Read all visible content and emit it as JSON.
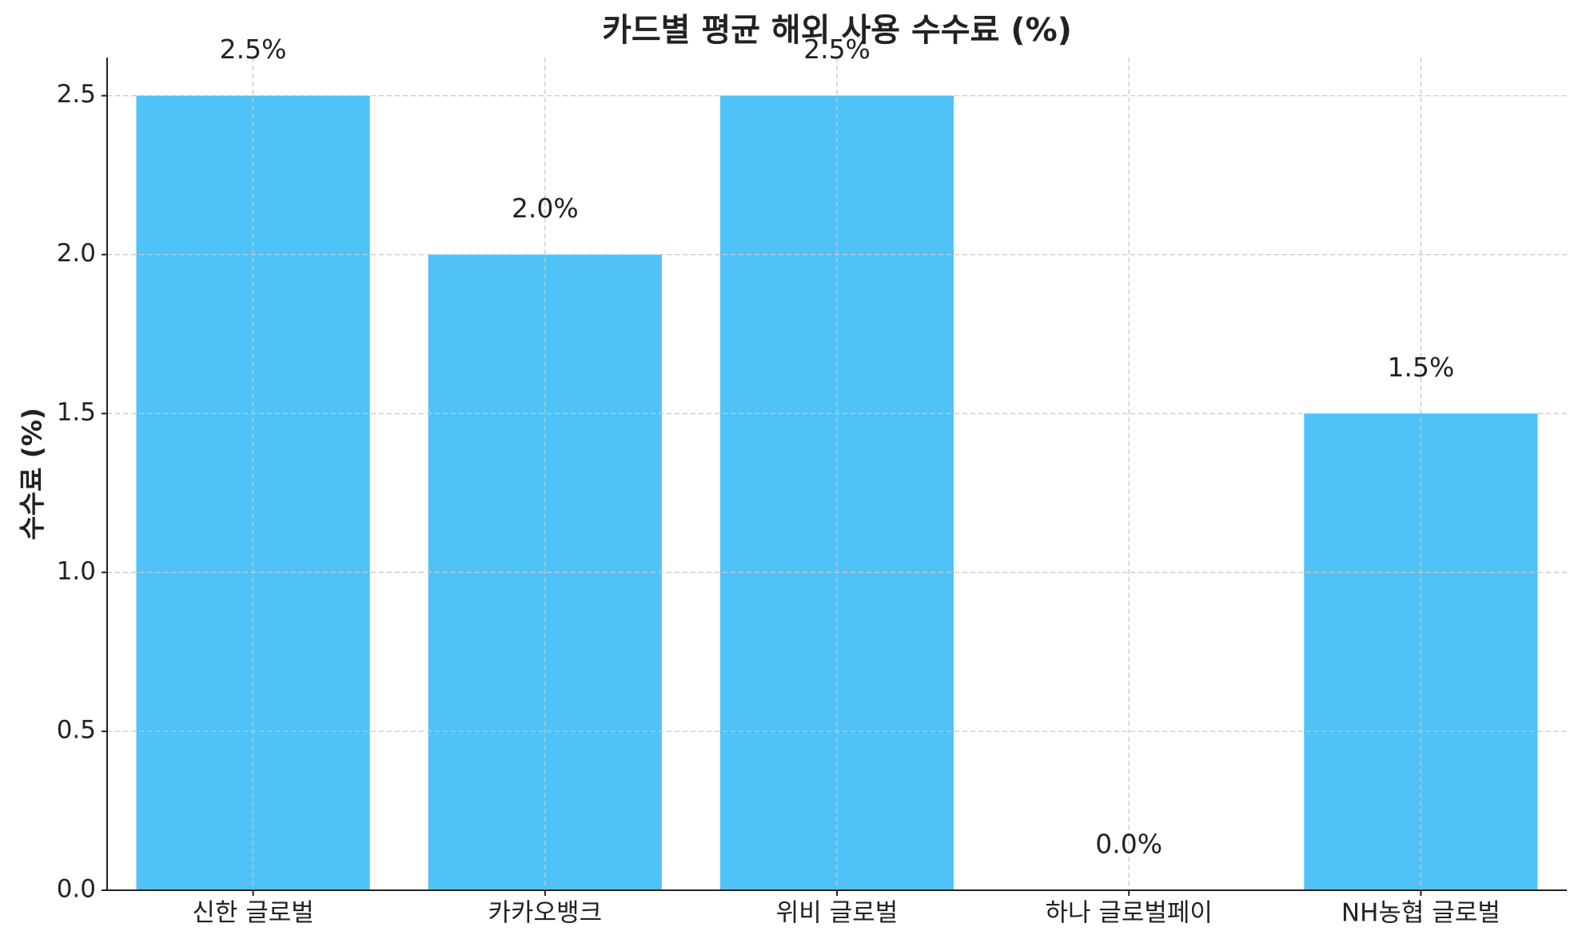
{
  "chart_data": {
    "type": "bar",
    "title": "카드별 평균 해외 사용 수수료 (%)",
    "y_label": "수수료 (%)",
    "categories": [
      "신한 글로벌",
      "카카오뱅크",
      "위비 글로벌",
      "하나 글로벌페이",
      "NH농협 글로벌"
    ],
    "values": [
      2.5,
      2.0,
      2.5,
      0.0,
      1.5
    ],
    "value_labels": [
      "2.5%",
      "2.0%",
      "2.5%",
      "0.0%",
      "1.5%"
    ],
    "color": "#4fc3f7",
    "ylim": [
      0,
      2.62
    ],
    "yticks": [
      {
        "value": 0,
        "label": "0.0"
      },
      0.5,
      {
        "value": 1,
        "label": "1.0"
      },
      1.5,
      {
        "value": 2,
        "label": "2.0"
      },
      2.5
    ],
    "grid": true
  }
}
